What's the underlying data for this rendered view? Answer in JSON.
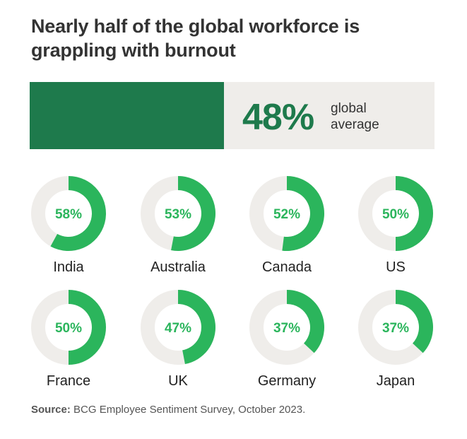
{
  "title": {
    "line1": "Nearly half of the global workforce is",
    "line2": "grappling with burnout"
  },
  "global": {
    "value_label": "48%",
    "value": 48,
    "label_line1": "global",
    "label_line2": "average"
  },
  "colors": {
    "bar_fill": "#1e7a4c",
    "bar_track": "#efedea",
    "donut_fill": "#2bb55c",
    "donut_track": "#efedea"
  },
  "chart_data": {
    "type": "pie",
    "title": "Nearly half of the global workforce is grappling with burnout",
    "unit": "%",
    "categories": [
      "India",
      "Australia",
      "Canada",
      "US",
      "France",
      "UK",
      "Germany",
      "Japan"
    ],
    "values": [
      58,
      53,
      52,
      50,
      50,
      47,
      37,
      37
    ],
    "value_labels": [
      "58%",
      "53%",
      "52%",
      "50%",
      "50%",
      "47%",
      "37%",
      "37%"
    ],
    "global_average": 48
  },
  "source": {
    "label": "Source:",
    "text": " BCG Employee Sentiment Survey, October 2023."
  }
}
